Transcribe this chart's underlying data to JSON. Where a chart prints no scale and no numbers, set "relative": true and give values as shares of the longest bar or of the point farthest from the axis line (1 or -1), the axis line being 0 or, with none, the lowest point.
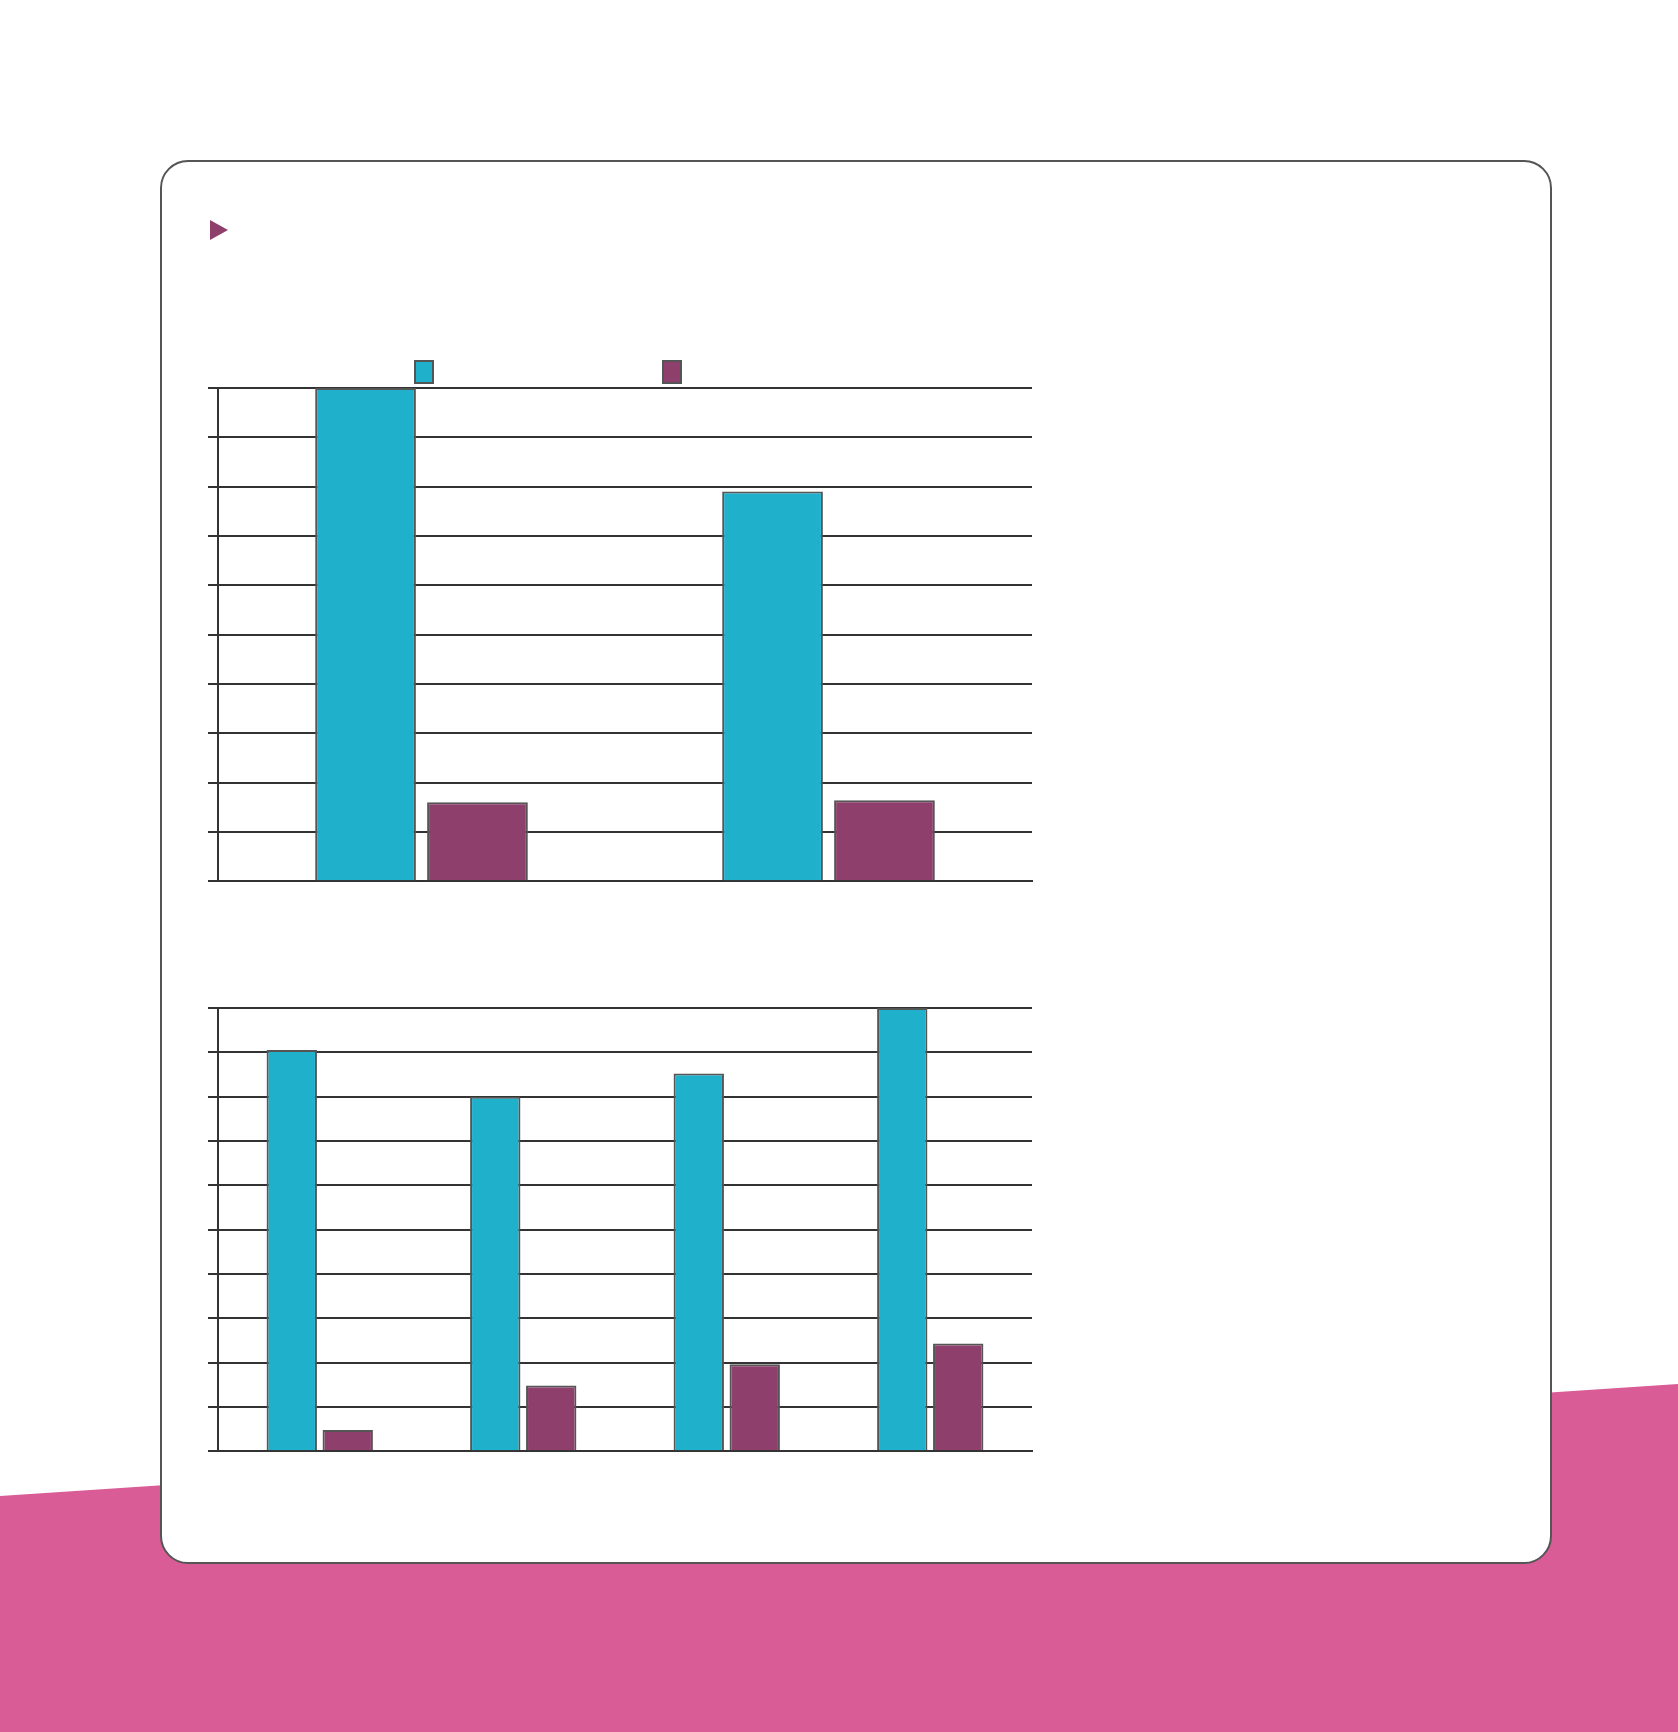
{
  "chart_data": [
    {
      "type": "bar",
      "relative": true,
      "grid": "y",
      "categories": [
        null,
        null
      ],
      "series": [
        {
          "color": "#1fb0cc",
          "values": [
            1,
            0.79
          ]
        },
        {
          "color": "#8e3f6c",
          "values": [
            0.16,
            0.164
          ]
        }
      ]
    },
    {
      "type": "bar",
      "relative": true,
      "grid": "y",
      "categories": [
        null,
        null,
        null,
        null
      ],
      "series": [
        {
          "color": "#1fb0cc",
          "values": [
            0.905,
            0.8,
            0.852,
            1
          ]
        },
        {
          "color": "#8e3f6c",
          "values": [
            0.048,
            0.148,
            0.196,
            0.243
          ]
        }
      ]
    }
  ]
}
